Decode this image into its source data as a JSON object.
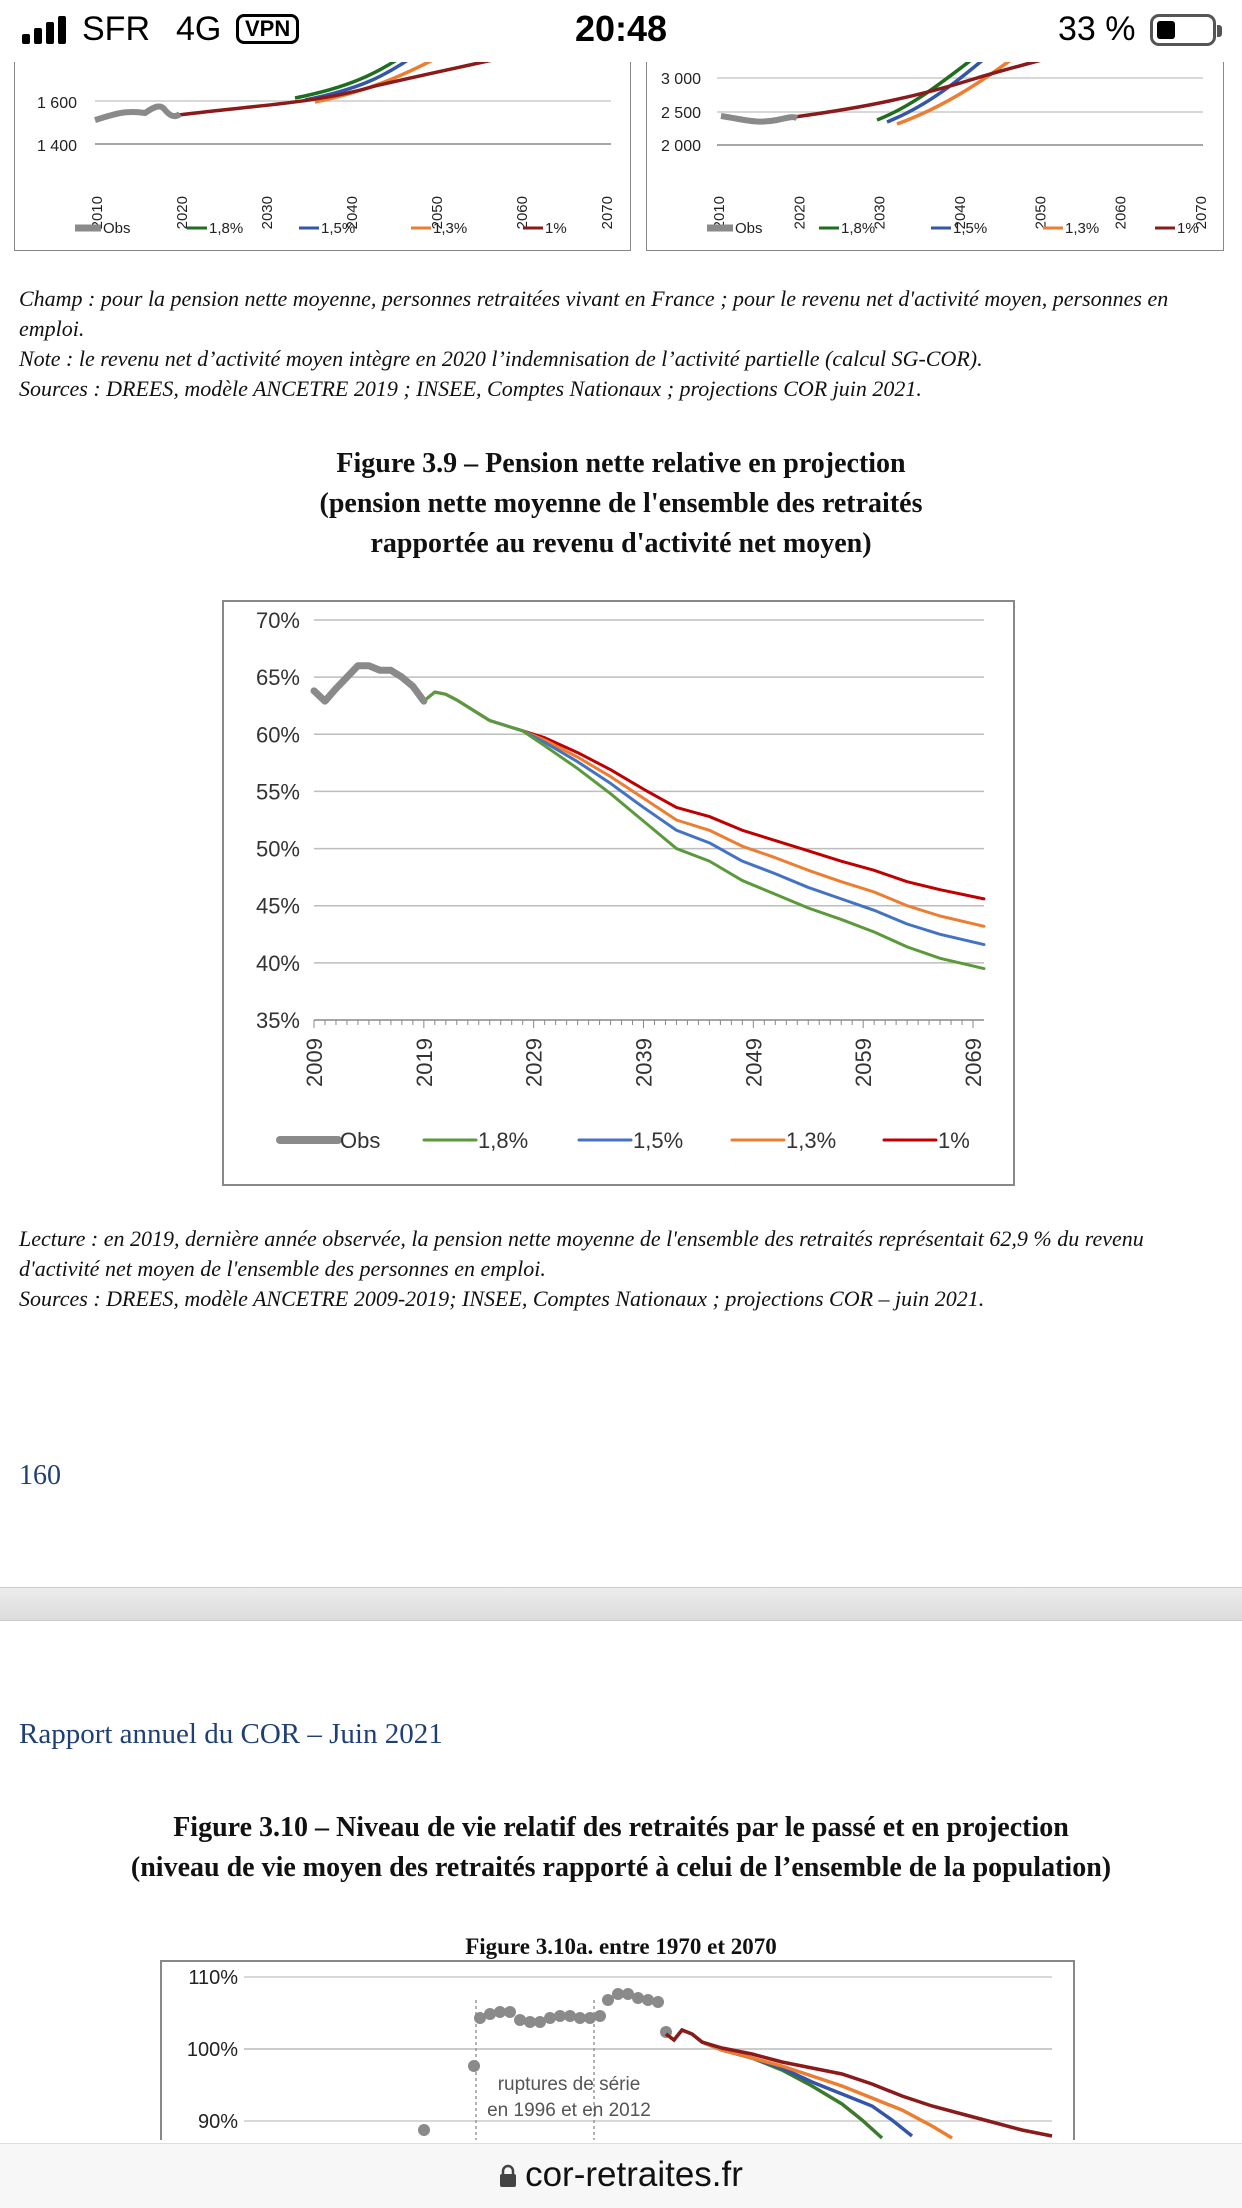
{
  "status_bar": {
    "carrier": "SFR",
    "network": "4G",
    "vpn": "VPN",
    "time": "20:48",
    "battery": "33 %",
    "battery_level": 0.33
  },
  "top_left_chart": {
    "y_ticks": [
      "1 400",
      "1 600"
    ],
    "x_ticks": [
      "2010",
      "2020",
      "2030",
      "2040",
      "2050",
      "2060",
      "2070"
    ],
    "legend": [
      "Obs",
      "1,8%",
      "1,5%",
      "1,3%",
      "1%"
    ]
  },
  "top_right_chart": {
    "y_ticks": [
      "2 000",
      "2 500",
      "3 000"
    ],
    "x_ticks": [
      "2010",
      "2020",
      "2030",
      "2040",
      "2050",
      "2060",
      "2070"
    ],
    "legend": [
      "Obs",
      "1,8%",
      "1,5%",
      "1,3%",
      "1%"
    ]
  },
  "notes": {
    "champ": "Champ : pour la pension nette moyenne, personnes retraitées vivant en France ; pour le revenu net d'activité moyen, personnes en emploi.",
    "note": "Note : le revenu net d’activité moyen intègre en 2020 l’indemnisation de l’activité partielle (calcul SG-COR).",
    "sources": "Sources : DREES, modèle ANCETRE 2019 ; INSEE, Comptes Nationaux ; projections COR juin 2021."
  },
  "figure_3_9": {
    "title_line1": "Figure 3.9 – Pension nette relative en projection",
    "title_line2": "(pension nette moyenne de l'ensemble des retraités",
    "title_line3": "rapportée au revenu d'activité net moyen)"
  },
  "chart_data": {
    "type": "line",
    "x_ticks": [
      "2009",
      "2019",
      "2029",
      "2039",
      "2049",
      "2059",
      "2069"
    ],
    "y_ticks": [
      "35%",
      "40%",
      "45%",
      "50%",
      "55%",
      "60%",
      "65%",
      "70%"
    ],
    "ylim": [
      35,
      70
    ],
    "xlim": [
      2009,
      2070
    ],
    "grid": true,
    "legend_position": "bottom",
    "series": [
      {
        "name": "Obs",
        "color": "#8a8a8a",
        "x": [
          2009,
          2010,
          2011,
          2012,
          2013,
          2014,
          2015,
          2016,
          2017,
          2018,
          2019
        ],
        "y": [
          63.8,
          62.9,
          64.0,
          65.0,
          66.0,
          66.0,
          65.6,
          65.6,
          65.0,
          64.2,
          62.9
        ]
      },
      {
        "name": "1,8%",
        "color": "#5a9a3a",
        "x": [
          2019,
          2020,
          2021,
          2022,
          2025,
          2028,
          2030,
          2033,
          2036,
          2039,
          2042,
          2045,
          2048,
          2051,
          2054,
          2057,
          2060,
          2063,
          2066,
          2070
        ],
        "y": [
          62.9,
          63.7,
          63.5,
          63.0,
          61.2,
          60.3,
          59.0,
          57.0,
          54.8,
          52.4,
          50.0,
          48.9,
          47.2,
          46.0,
          44.8,
          43.8,
          42.7,
          41.4,
          40.4,
          39.5
        ]
      },
      {
        "name": "1,5%",
        "color": "#4472c4",
        "x": [
          2019,
          2020,
          2021,
          2022,
          2025,
          2028,
          2030,
          2033,
          2036,
          2039,
          2042,
          2045,
          2048,
          2051,
          2054,
          2057,
          2060,
          2063,
          2066,
          2070
        ],
        "y": [
          62.9,
          63.7,
          63.5,
          63.0,
          61.2,
          60.3,
          59.3,
          57.6,
          55.7,
          53.6,
          51.6,
          50.5,
          48.9,
          47.8,
          46.6,
          45.6,
          44.6,
          43.4,
          42.5,
          41.6
        ]
      },
      {
        "name": "1,3%",
        "color": "#ed7d31",
        "x": [
          2019,
          2020,
          2021,
          2022,
          2025,
          2028,
          2030,
          2033,
          2036,
          2039,
          2042,
          2045,
          2048,
          2051,
          2054,
          2057,
          2060,
          2063,
          2066,
          2070
        ],
        "y": [
          62.9,
          63.7,
          63.5,
          63.0,
          61.2,
          60.3,
          59.5,
          58.0,
          56.3,
          54.4,
          52.5,
          51.6,
          50.2,
          49.2,
          48.1,
          47.1,
          46.2,
          45.0,
          44.1,
          43.2
        ]
      },
      {
        "name": "1%",
        "color": "#c00000",
        "x": [
          2019,
          2020,
          2021,
          2022,
          2025,
          2028,
          2030,
          2033,
          2036,
          2039,
          2042,
          2045,
          2048,
          2051,
          2054,
          2057,
          2060,
          2063,
          2066,
          2070
        ],
        "y": [
          62.9,
          63.7,
          63.5,
          63.0,
          61.2,
          60.3,
          59.7,
          58.4,
          56.9,
          55.2,
          53.6,
          52.8,
          51.6,
          50.7,
          49.8,
          48.9,
          48.1,
          47.1,
          46.4,
          45.6
        ]
      }
    ]
  },
  "lecture": {
    "text": "Lecture : en 2019, dernière année observée, la pension nette moyenne de l'ensemble des retraités représentait 62,9 % du revenu d'activité net moyen de l'ensemble des personnes en emploi.",
    "sources": "Sources : DREES, modèle ANCETRE 2009-2019; INSEE, Comptes Nationaux ; projections COR – juin 2021."
  },
  "page_number": "160",
  "next_page": {
    "header": "Rapport annuel du COR – Juin 2021",
    "title_line1": "Figure 3.10 – Niveau de vie relatif des retraités par le passé et en projection",
    "title_line2": "(niveau de vie moyen des retraités rapporté à celui de l’ensemble de la population)",
    "subtitle": "Figure 3.10a. entre 1970 et 2070",
    "y_ticks": [
      "90%",
      "100%",
      "110%"
    ],
    "annotation_line1": "ruptures de série",
    "annotation_line2": "en 1996 et en 2012"
  },
  "url_bar": {
    "url": "cor-retraites.fr"
  }
}
